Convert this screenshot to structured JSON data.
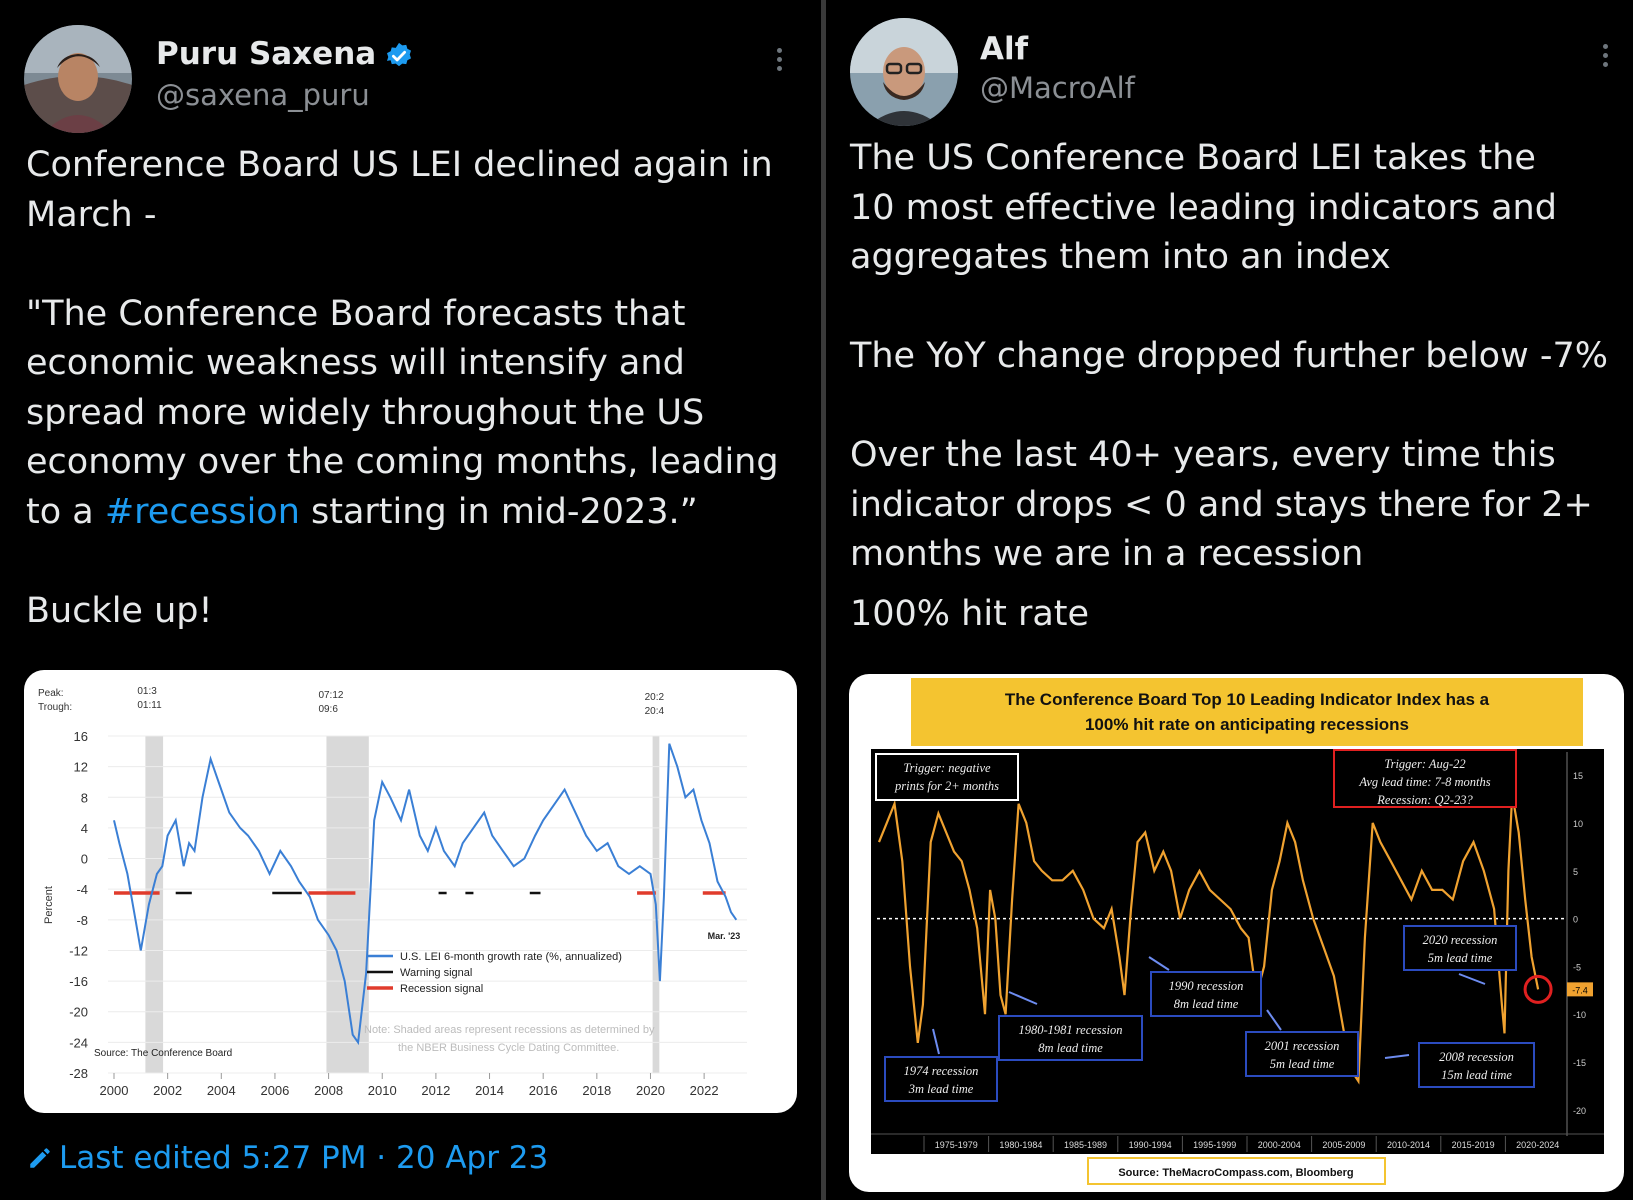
{
  "left_tweet": {
    "author_name": "Puru Saxena",
    "author_handle": "@saxena_puru",
    "paragraph1_line1": "Conference Board US LEI declined again in",
    "paragraph1_line2": "March -",
    "quote_line1": "\"The Conference Board forecasts that",
    "quote_line2": "economic weakness will intensify and",
    "quote_line3": "spread more widely throughout the US",
    "quote_line4": "economy over the coming months, leading",
    "quote_line5_pre": "to a ",
    "quote_line5_hashtag": "#recession",
    "quote_line5_post": " starting in mid-2023.”",
    "closing": "Buckle up!",
    "edited_label": "Last edited 5:27 PM · 20 Apr 23",
    "accent_color": "#1d9bf0"
  },
  "right_tweet": {
    "author_name": "Alf",
    "author_handle": "@MacroAlf",
    "line1": "The US Conference Board LEI takes the",
    "line2": "10 most effective leading indicators and",
    "line3": "aggregates them into an index",
    "line4": "The YoY change dropped further below -7%",
    "line5": "Over the last 40+ years, every time this",
    "line6": "indicator drops < 0 and stays there for 2+",
    "line7": "months we are in a recession",
    "line8": "100% hit rate"
  },
  "chart_left": {
    "peak_label": "Peak:",
    "trough_label": "Trough:",
    "recession1_peak": "01:3",
    "recession1_trough": "01:11",
    "recession2_peak": "07:12",
    "recession2_trough": "09:6",
    "recession3_peak": "20:2",
    "recession3_trough": "20:4",
    "ylabel": "Percent",
    "last_point_label": "Mar. '23",
    "legend_line": "U.S. LEI 6-month growth rate (%, annualized)",
    "legend_warning": "Warning signal",
    "legend_recession": "Recession signal",
    "note_line1": "Note: Shaded areas represent recessions as determined by",
    "note_line2": "the NBER Business Cycle Dating Committee.",
    "source": "Source: The Conference Board",
    "line_color": "#3a7fd5",
    "recession_signal_color": "#e03b2c"
  },
  "chart_right": {
    "title_line1": "The Conference Board Top 10 Leading Indicator Index has a",
    "title_line2": "100% hit rate on anticipating recessions",
    "trigger_box_line1": "Trigger: negative",
    "trigger_box_line2": "prints for 2+ months",
    "trigger_aug_line1": "Trigger: Aug-22",
    "trigger_aug_line2": "Avg lead time: 7-8 months",
    "trigger_aug_line3": "Recession: Q2-23?",
    "label_1974_line1": "1974 recession",
    "label_1974_line2": "3m lead time",
    "label_1980_line1": "1980-1981 recession",
    "label_1980_line2": "8m lead time",
    "label_1990_line1": "1990 recession",
    "label_1990_line2": "8m lead time",
    "label_2001_line1": "2001 recession",
    "label_2001_line2": "5m lead time",
    "label_2008_line1": "2008 recession",
    "label_2008_line2": "15m lead time",
    "label_2020_line1": "2020 recession",
    "label_2020_line2": "5m lead time",
    "current_value_tag": "-7.4",
    "source": "Source: TheMacroCompass.com, Bloomberg",
    "line_color": "#f0a230",
    "title_bg": "#f4c430"
  },
  "chart_data": [
    {
      "type": "line",
      "title": "",
      "ylabel": "Percent",
      "ylim": [
        -28,
        16
      ],
      "yticks": [
        16,
        12,
        8,
        4,
        0,
        -4,
        -8,
        -12,
        -16,
        -20,
        -24,
        -28
      ],
      "xlim": [
        2000,
        2023.3
      ],
      "xticks": [
        2000,
        2002,
        2004,
        2006,
        2008,
        2010,
        2012,
        2014,
        2016,
        2018,
        2020,
        2022
      ],
      "recessions": [
        [
          2001.17,
          2001.83
        ],
        [
          2007.92,
          2009.5
        ],
        [
          2020.08,
          2020.33
        ]
      ],
      "recession_signal_level": -4.5,
      "recession_signal_ranges": [
        [
          2000.0,
          2001.7
        ],
        [
          2007.25,
          2009.0
        ],
        [
          2019.5,
          2020.2
        ],
        [
          2021.95,
          2022.8
        ]
      ],
      "warning_signal_ranges": [
        [
          2002.3,
          2002.9
        ],
        [
          2005.9,
          2007.0
        ],
        [
          2012.1,
          2012.4
        ],
        [
          2013.1,
          2013.4
        ],
        [
          2015.5,
          2015.9
        ]
      ],
      "series": [
        {
          "name": "U.S. LEI 6-month growth rate (%, annualized)",
          "x": [
            2000.0,
            2000.2,
            2000.5,
            2000.8,
            2001.0,
            2001.3,
            2001.6,
            2001.8,
            2002.0,
            2002.3,
            2002.6,
            2002.8,
            2003.0,
            2003.3,
            2003.6,
            2003.9,
            2004.3,
            2004.7,
            2005.0,
            2005.4,
            2005.8,
            2006.2,
            2006.6,
            2006.9,
            2007.3,
            2007.6,
            2008.0,
            2008.3,
            2008.6,
            2008.9,
            2009.1,
            2009.4,
            2009.7,
            2010.0,
            2010.3,
            2010.7,
            2011.0,
            2011.4,
            2011.7,
            2012.0,
            2012.3,
            2012.7,
            2013.0,
            2013.4,
            2013.8,
            2014.1,
            2014.5,
            2014.9,
            2015.3,
            2015.7,
            2016.0,
            2016.4,
            2016.8,
            2017.2,
            2017.6,
            2018.0,
            2018.4,
            2018.8,
            2019.2,
            2019.6,
            2020.0,
            2020.2,
            2020.35,
            2020.5,
            2020.7,
            2021.0,
            2021.3,
            2021.6,
            2021.9,
            2022.2,
            2022.5,
            2022.8,
            2023.0,
            2023.2
          ],
          "y": [
            5,
            2,
            -2,
            -8,
            -12,
            -6,
            -2,
            -1,
            3,
            5,
            -1,
            2,
            1,
            8,
            13,
            10,
            6,
            4,
            3,
            1,
            -2,
            1,
            -1,
            -3,
            -5,
            -8,
            -10,
            -12,
            -16,
            -23,
            -24,
            -15,
            5,
            10,
            8,
            5,
            9,
            3,
            1,
            4,
            1,
            -1,
            2,
            4,
            6,
            3,
            1,
            -1,
            0,
            3,
            5,
            7,
            9,
            6,
            3,
            1,
            2,
            -1,
            -2,
            -1,
            -2,
            -6,
            -16,
            -5,
            15,
            12,
            8,
            9,
            5,
            2,
            -3,
            -5,
            -7,
            -8
          ]
        }
      ]
    },
    {
      "type": "line",
      "title": "The Conference Board Top 10 Leading Indicator Index has a 100% hit rate on anticipating recessions",
      "ylim": [
        -22,
        17
      ],
      "yticks": [
        15,
        10,
        5,
        0,
        -5,
        -10,
        -15,
        -20
      ],
      "x_categories": [
        "1975-1979",
        "1980-1984",
        "1985-1989",
        "1990-1994",
        "1995-1999",
        "2000-2004",
        "2005-2009",
        "2010-2014",
        "2015-2019",
        "2020-2024"
      ],
      "xlim": [
        1972,
        2024
      ],
      "series": [
        {
          "name": "",
          "x": [
            1972.0,
            1972.6,
            1973.2,
            1973.8,
            1974.4,
            1975.0,
            1975.4,
            1976.0,
            1976.6,
            1977.2,
            1977.8,
            1978.4,
            1979.0,
            1979.6,
            1980.2,
            1980.6,
            1981.0,
            1981.4,
            1981.8,
            1982.3,
            1982.8,
            1983.4,
            1984.0,
            1984.6,
            1985.4,
            1986.2,
            1987.0,
            1987.8,
            1988.6,
            1989.4,
            1990.0,
            1990.6,
            1991.0,
            1991.5,
            1992.0,
            1992.6,
            1993.3,
            1994.0,
            1994.6,
            1995.3,
            1996.0,
            1996.8,
            1997.6,
            1998.4,
            1999.2,
            2000.0,
            2000.6,
            2001.2,
            2001.8,
            2002.4,
            2003.0,
            2003.6,
            2004.2,
            2004.8,
            2005.6,
            2006.4,
            2007.2,
            2008.0,
            2008.6,
            2009.1,
            2009.6,
            2010.2,
            2010.8,
            2011.6,
            2012.4,
            2013.2,
            2014.0,
            2014.8,
            2015.6,
            2016.4,
            2017.2,
            2018.0,
            2018.8,
            2019.6,
            2020.2,
            2020.4,
            2020.7,
            2021.0,
            2021.5,
            2022.0,
            2022.5,
            2023.0
          ],
          "y": [
            8,
            10,
            12,
            6,
            -5,
            -13,
            -9,
            8,
            11,
            9,
            7,
            6,
            3,
            -1,
            -10,
            3,
            0,
            -8,
            -10,
            2,
            12,
            10,
            6,
            5,
            4,
            4,
            5,
            3,
            0,
            -1,
            1,
            -4,
            -8,
            1,
            8,
            9,
            5,
            7,
            5,
            0,
            3,
            5,
            3,
            2,
            1,
            -1,
            -2,
            -8,
            -5,
            3,
            6,
            10,
            8,
            4,
            0,
            -3,
            -6,
            -12,
            -16,
            -17,
            -2,
            10,
            8,
            6,
            4,
            2,
            5,
            3,
            3,
            2,
            6,
            8,
            5,
            1,
            -9,
            -12,
            5,
            13,
            9,
            2,
            -4,
            -7.4
          ]
        }
      ]
    }
  ]
}
